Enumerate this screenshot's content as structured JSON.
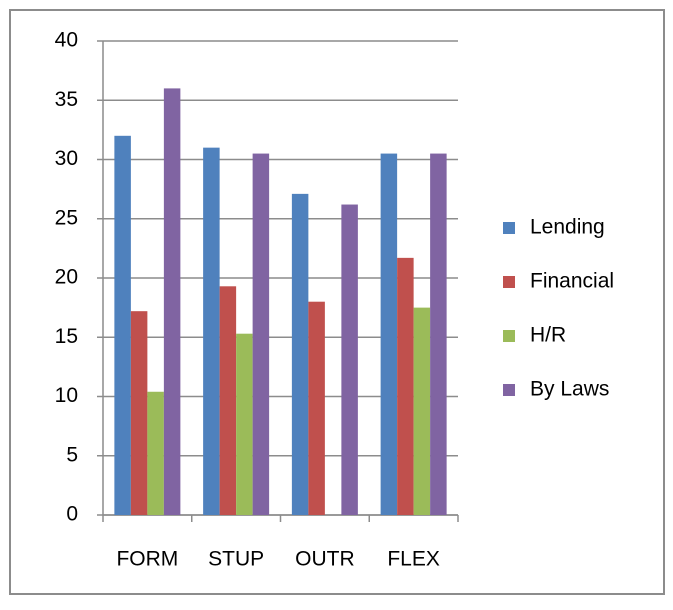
{
  "chart_data": {
    "type": "bar",
    "categories": [
      "FORM",
      "STUP",
      "OUTR",
      "FLEX"
    ],
    "series": [
      {
        "name": "Lending",
        "color": "#4f81bd",
        "values": [
          32,
          31,
          27.1,
          30.5
        ]
      },
      {
        "name": "Financial",
        "color": "#c0504d",
        "values": [
          17.2,
          19.3,
          18,
          21.7
        ]
      },
      {
        "name": "H/R",
        "color": "#9bbb59",
        "values": [
          10.4,
          15.3,
          0,
          17.5
        ]
      },
      {
        "name": "By Laws",
        "color": "#8064a2",
        "values": [
          36,
          30.5,
          26.2,
          30.5
        ]
      }
    ],
    "ylim": [
      0,
      40
    ],
    "yticks": [
      0,
      5,
      10,
      15,
      20,
      25,
      30,
      35,
      40
    ],
    "grid": true,
    "legend": "right"
  }
}
